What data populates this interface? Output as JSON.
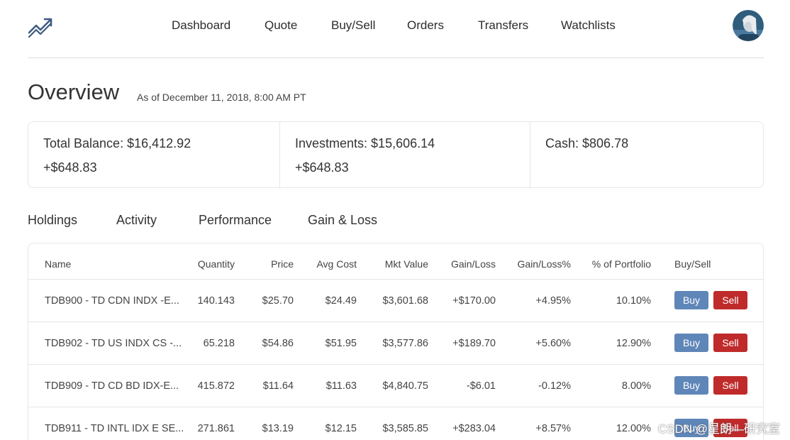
{
  "nav": {
    "items": [
      "Dashboard",
      "Quote",
      "Buy/Sell",
      "Orders",
      "Transfers",
      "Watchlists"
    ]
  },
  "overview": {
    "title": "Overview",
    "as_of": "As of December 11, 2018, 8:00 AM PT"
  },
  "summary": {
    "total_balance": "Total Balance: $16,412.92",
    "total_change": "+$648.83",
    "investments": "Investments: $15,606.14",
    "investments_change": "+$648.83",
    "cash": "Cash: $806.78"
  },
  "tabs": [
    "Holdings",
    "Activity",
    "Performance",
    "Gain & Loss"
  ],
  "holdings": {
    "columns": [
      "Name",
      "Quantity",
      "Price",
      "Avg Cost",
      "Mkt Value",
      "Gain/Loss",
      "Gain/Loss%",
      "% of Portfolio",
      "Buy/Sell"
    ],
    "buy_label": "Buy",
    "sell_label": "Sell",
    "rows": [
      {
        "name": "TDB900 - TD CDN INDX -E...",
        "quantity": "140.143",
        "price": "$25.70",
        "avg_cost": "$24.49",
        "mkt_value": "$3,601.68",
        "gain_loss": "+$170.00",
        "gain_loss_pct": "+4.95%",
        "portfolio_pct": "10.10%"
      },
      {
        "name": "TDB902 - TD US INDX CS -...",
        "quantity": "65.218",
        "price": "$54.86",
        "avg_cost": "$51.95",
        "mkt_value": "$3,577.86",
        "gain_loss": "+$189.70",
        "gain_loss_pct": "+5.60%",
        "portfolio_pct": "12.90%"
      },
      {
        "name": "TDB909 - TD CD BD IDX-E...",
        "quantity": "415.872",
        "price": "$11.64",
        "avg_cost": "$11.63",
        "mkt_value": "$4,840.75",
        "gain_loss": "-$6.01",
        "gain_loss_pct": "-0.12%",
        "portfolio_pct": "8.00%"
      },
      {
        "name": "TDB911 - TD INTL IDX E SE...",
        "quantity": "271.861",
        "price": "$13.19",
        "avg_cost": "$12.15",
        "mkt_value": "$3,585.85",
        "gain_loss": "+$283.04",
        "gain_loss_pct": "+8.57%",
        "portfolio_pct": "12.00%"
      }
    ]
  },
  "watermark": "CSDN @星朗—研究室",
  "colors": {
    "buy": "#5f86b8",
    "sell": "#bf2a2a",
    "logo": "#3d5a80"
  }
}
